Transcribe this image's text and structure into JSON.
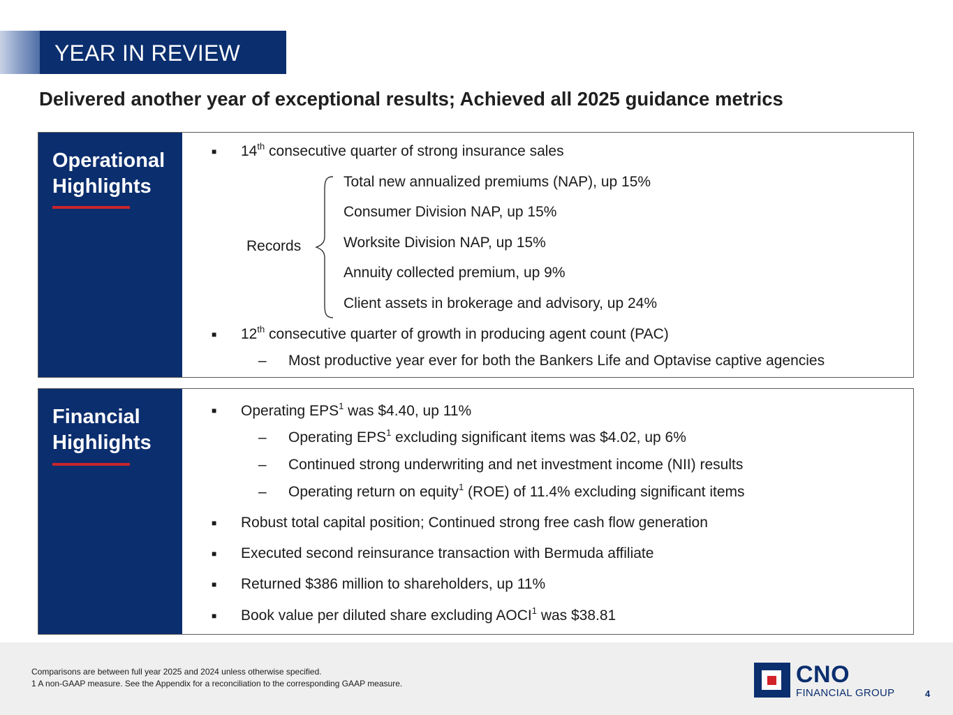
{
  "header": {
    "title": "YEAR IN REVIEW",
    "headline": "Delivered another year of exceptional results; Achieved all 2025 guidance metrics"
  },
  "operational": {
    "title_line1": "Operational",
    "title_line2": "Highlights",
    "bullet1_pre": "14",
    "bullet1_sup": "th",
    "bullet1_post": " consecutive quarter of strong insurance sales",
    "records_label": "Records",
    "records": [
      "Total new annualized premiums (NAP), up 15%",
      "Consumer Division NAP, up 15%",
      "Worksite Division NAP, up 15%",
      "Annuity collected premium, up 9%",
      "Client assets in brokerage and advisory, up 24%"
    ],
    "bullet2_pre": "12",
    "bullet2_sup": "th",
    "bullet2_post": " consecutive quarter of growth in producing agent count (PAC)",
    "sub1": "Most productive year ever for both the Bankers Life and Optavise captive agencies"
  },
  "financial": {
    "title_line1": "Financial",
    "title_line2": "Highlights",
    "b1_pre": "Operating EPS",
    "b1_sup": "1",
    "b1_post": " was $4.40, up 11%",
    "s1_pre": "Operating EPS",
    "s1_sup": "1",
    "s1_post": " excluding significant items was $4.02, up 6%",
    "s2": "Continued strong underwriting and net investment income (NII) results",
    "s3_pre": "Operating return on equity",
    "s3_sup": "1",
    "s3_post": " (ROE) of 11.4% excluding significant items",
    "b2": "Robust total capital position; Continued strong free cash flow generation",
    "b3": "Executed second reinsurance transaction with Bermuda affiliate",
    "b4": "Returned $386 million to shareholders, up 11%",
    "b5_pre": "Book value per diluted share excluding AOCI",
    "b5_sup": "1",
    "b5_post": " was $38.81"
  },
  "footer": {
    "note1": "Comparisons are between full year 2025 and 2024 unless otherwise specified.",
    "note2": "1  A non-GAAP measure. See the Appendix for a reconciliation to the corresponding GAAP measure.",
    "logo_name": "CNO",
    "logo_sub": "FINANCIAL GROUP",
    "page_number": "4"
  },
  "colors": {
    "navy": "#0b2e6e",
    "red": "#c8252c"
  },
  "icons": {
    "bullet": "square-bullet-icon",
    "dash": "dash-icon",
    "brace": "curly-brace-icon"
  }
}
